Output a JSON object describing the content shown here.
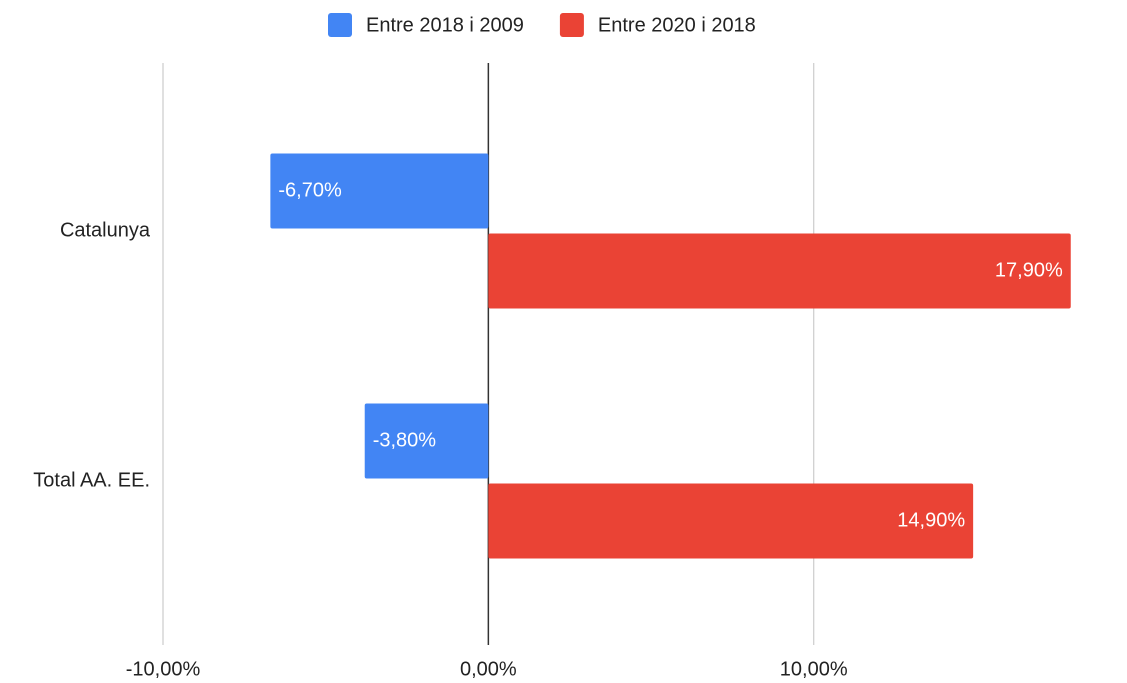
{
  "chart_data": {
    "type": "hbar",
    "categories": [
      "Catalunya",
      "Total AA. EE."
    ],
    "series": [
      {
        "name": "Entre 2018 i 2009",
        "color": "#4285f4",
        "values": [
          -6.7,
          -3.8
        ],
        "value_labels": [
          "-6,70%",
          "-3,80%"
        ]
      },
      {
        "name": "Entre 2020 i 2018",
        "color": "#ea4335",
        "values": [
          17.9,
          14.9
        ],
        "value_labels": [
          "17,90%",
          "14,90%"
        ]
      }
    ],
    "xlim": [
      -10,
      18
    ],
    "xticks": [
      {
        "value": -10,
        "label": "-10,00%"
      },
      {
        "value": 0,
        "label": "0,00%"
      },
      {
        "value": 10,
        "label": "10,00%"
      }
    ],
    "grid": true,
    "legend": "top"
  }
}
